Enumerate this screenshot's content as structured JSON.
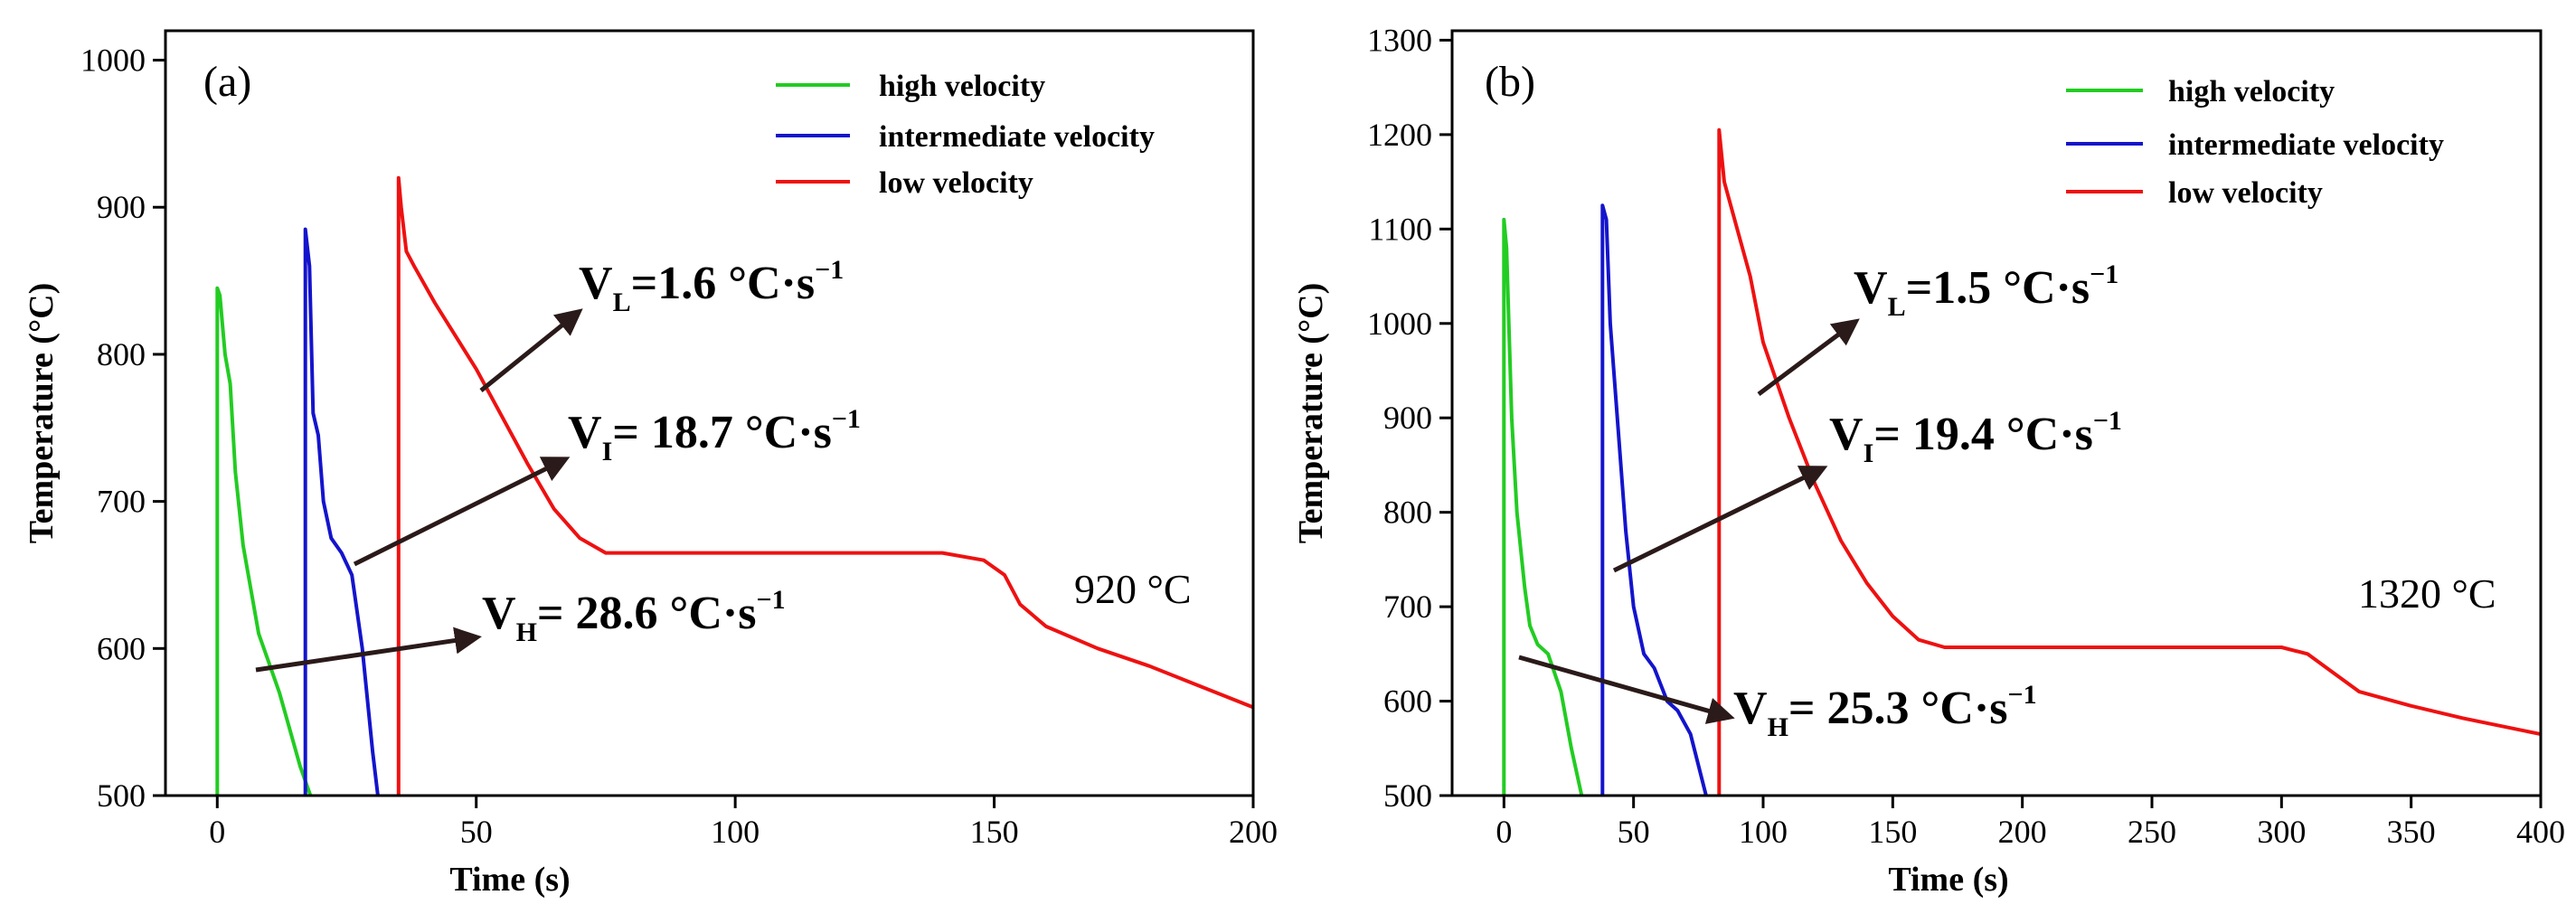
{
  "colors": {
    "high": "#22cc22",
    "intermediate": "#1414cc",
    "low": "#ee1111",
    "arrow": "#2b1a1a"
  },
  "chart_data": [
    {
      "type": "line",
      "panel_label": "(a)",
      "xlabel": "Time (s)",
      "ylabel": "Temperature (°C)",
      "xlim": [
        -10,
        200
      ],
      "ylim": [
        500,
        1020
      ],
      "xticks": [
        0,
        50,
        100,
        150,
        200
      ],
      "yticks": [
        500,
        600,
        700,
        800,
        900,
        1000
      ],
      "legend_position": "top-right",
      "temperature_label": "920 °C",
      "series": [
        {
          "name": "high velocity",
          "color_key": "high",
          "x": [
            0,
            0,
            0.5,
            1.5,
            2.5,
            3.5,
            5,
            6.5,
            8,
            10,
            12,
            14,
            16,
            18
          ],
          "y": [
            500,
            845,
            840,
            800,
            780,
            720,
            670,
            640,
            610,
            590,
            570,
            545,
            520,
            500
          ]
        },
        {
          "name": "intermediate velocity",
          "color_key": "intermediate",
          "x": [
            17,
            17,
            17.8,
            18.5,
            19.5,
            20.5,
            22,
            24,
            26,
            28,
            30,
            31
          ],
          "y": [
            500,
            885,
            860,
            760,
            745,
            700,
            675,
            665,
            650,
            600,
            530,
            500
          ]
        },
        {
          "name": "low velocity",
          "color_key": "low",
          "x": [
            35,
            35,
            35.5,
            36.5,
            38,
            42,
            50,
            60,
            65,
            70,
            75,
            90,
            110,
            140,
            148,
            152,
            155,
            160,
            170,
            180,
            190,
            200
          ],
          "y": [
            500,
            920,
            900,
            870,
            860,
            835,
            790,
            725,
            695,
            675,
            665,
            665,
            665,
            665,
            660,
            650,
            630,
            615,
            600,
            588,
            574,
            560
          ]
        }
      ],
      "annotations": [
        {
          "main": "V",
          "sub": "L",
          "value": "=1.6 °C·s",
          "sup": "−1"
        },
        {
          "main": "V",
          "sub": "I",
          "value": "= 18.7 °C·s",
          "sup": "−1"
        },
        {
          "main": "V",
          "sub": "H",
          "value": "= 28.6 °C·s",
          "sup": "−1"
        }
      ]
    },
    {
      "type": "line",
      "panel_label": "(b)",
      "xlabel": "Time (s)",
      "ylabel": "Temperature (°C)",
      "xlim": [
        -20,
        400
      ],
      "ylim": [
        500,
        1310
      ],
      "xticks": [
        0,
        50,
        100,
        150,
        200,
        250,
        300,
        350,
        400
      ],
      "yticks": [
        500,
        600,
        700,
        800,
        900,
        1000,
        1100,
        1200,
        1300
      ],
      "legend_position": "top-right",
      "temperature_label": "1320 °C",
      "series": [
        {
          "name": "high velocity",
          "color_key": "high",
          "x": [
            0,
            0,
            1,
            3,
            5,
            8,
            10,
            13,
            17,
            22,
            26,
            30
          ],
          "y": [
            500,
            1110,
            1080,
            900,
            800,
            720,
            680,
            660,
            650,
            610,
            550,
            500
          ]
        },
        {
          "name": "intermediate velocity",
          "color_key": "intermediate",
          "x": [
            38,
            38,
            39.5,
            41,
            44,
            47,
            50,
            54,
            58,
            63,
            67,
            72,
            78
          ],
          "y": [
            500,
            1125,
            1110,
            1000,
            890,
            780,
            700,
            650,
            635,
            600,
            590,
            565,
            500
          ]
        },
        {
          "name": "low velocity",
          "color_key": "low",
          "x": [
            83,
            83,
            85,
            90,
            95,
            100,
            110,
            120,
            130,
            140,
            150,
            160,
            170,
            200,
            250,
            300,
            310,
            320,
            330,
            350,
            370,
            400
          ],
          "y": [
            500,
            1205,
            1150,
            1100,
            1050,
            980,
            900,
            830,
            770,
            725,
            690,
            665,
            657,
            657,
            657,
            657,
            650,
            630,
            610,
            595,
            582,
            565
          ]
        }
      ],
      "annotations": [
        {
          "main": "V",
          "sub": "L",
          "value": "=1.5 °C·s",
          "sup": "−1"
        },
        {
          "main": "V",
          "sub": "I",
          "value": "= 19.4 °C·s",
          "sup": "−1"
        },
        {
          "main": "V",
          "sub": "H",
          "value": "= 25.3 °C·s",
          "sup": "−1"
        }
      ]
    }
  ]
}
